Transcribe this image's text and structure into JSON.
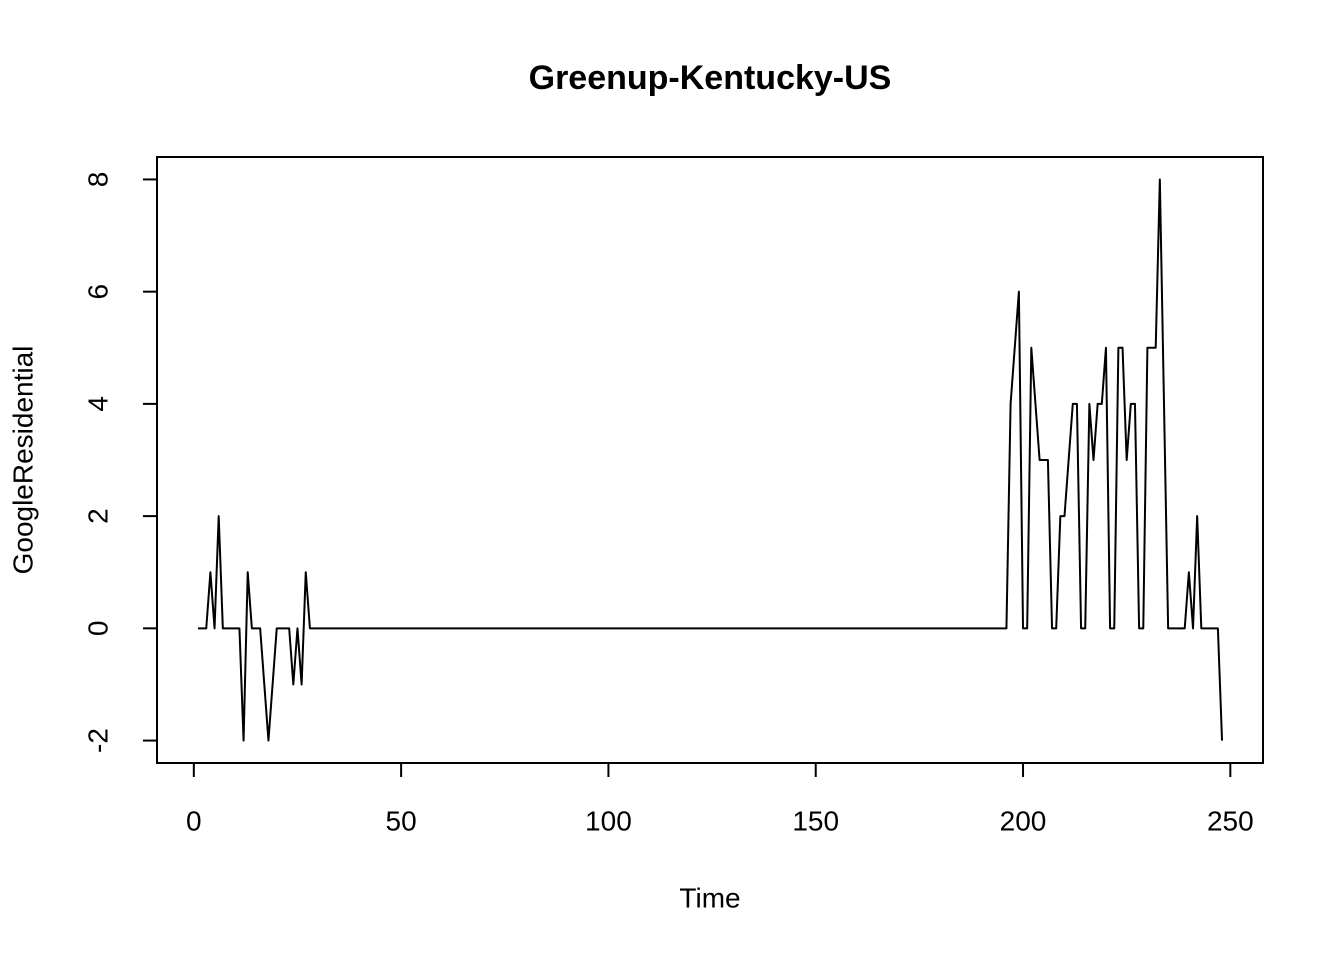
{
  "chart_data": {
    "type": "line",
    "title": "Greenup-Kentucky-US",
    "x_label": "Time",
    "y_label": "GoogleResidential",
    "x": [
      1,
      2,
      3,
      4,
      5,
      6,
      7,
      8,
      9,
      10,
      11,
      12,
      13,
      14,
      15,
      16,
      17,
      18,
      19,
      20,
      21,
      22,
      23,
      24,
      25,
      26,
      27,
      28,
      29,
      30,
      31,
      32,
      33,
      34,
      35,
      36,
      37,
      38,
      39,
      40,
      41,
      42,
      43,
      44,
      45,
      46,
      47,
      48,
      49,
      50,
      51,
      52,
      53,
      54,
      55,
      56,
      57,
      58,
      59,
      60,
      61,
      62,
      63,
      64,
      65,
      66,
      67,
      68,
      69,
      70,
      71,
      72,
      73,
      74,
      75,
      76,
      77,
      78,
      79,
      80,
      81,
      82,
      83,
      84,
      85,
      86,
      87,
      88,
      89,
      90,
      91,
      92,
      93,
      94,
      95,
      96,
      97,
      98,
      99,
      100,
      101,
      102,
      103,
      104,
      105,
      106,
      107,
      108,
      109,
      110,
      111,
      112,
      113,
      114,
      115,
      116,
      117,
      118,
      119,
      120,
      121,
      122,
      123,
      124,
      125,
      126,
      127,
      128,
      129,
      130,
      131,
      132,
      133,
      134,
      135,
      136,
      137,
      138,
      139,
      140,
      141,
      142,
      143,
      144,
      145,
      146,
      147,
      148,
      149,
      150,
      151,
      152,
      153,
      154,
      155,
      156,
      157,
      158,
      159,
      160,
      161,
      162,
      163,
      164,
      165,
      166,
      167,
      168,
      169,
      170,
      171,
      172,
      173,
      174,
      175,
      176,
      177,
      178,
      179,
      180,
      181,
      182,
      183,
      184,
      185,
      186,
      187,
      188,
      189,
      190,
      191,
      192,
      193,
      194,
      195,
      196,
      197,
      198,
      199,
      200,
      201,
      202,
      203,
      204,
      205,
      206,
      207,
      208,
      209,
      210,
      211,
      212,
      213,
      214,
      215,
      216,
      217,
      218,
      219,
      220,
      221,
      222,
      223,
      224,
      225,
      226,
      227,
      228,
      229,
      230,
      231,
      232,
      233,
      234,
      235,
      236,
      237,
      238,
      239,
      240,
      241,
      242,
      243,
      244,
      245,
      246,
      247,
      248
    ],
    "series": [
      {
        "name": "GoogleResidential",
        "color": "#000000",
        "values": [
          0,
          0,
          0,
          1,
          0,
          2,
          0,
          0,
          0,
          0,
          0,
          -2,
          1,
          0,
          0,
          0,
          -1,
          -2,
          -1,
          0,
          0,
          0,
          0,
          -1,
          0,
          -1,
          1,
          0,
          0,
          0,
          0,
          0,
          0,
          0,
          0,
          0,
          0,
          0,
          0,
          0,
          0,
          0,
          0,
          0,
          0,
          0,
          0,
          0,
          0,
          0,
          0,
          0,
          0,
          0,
          0,
          0,
          0,
          0,
          0,
          0,
          0,
          0,
          0,
          0,
          0,
          0,
          0,
          0,
          0,
          0,
          0,
          0,
          0,
          0,
          0,
          0,
          0,
          0,
          0,
          0,
          0,
          0,
          0,
          0,
          0,
          0,
          0,
          0,
          0,
          0,
          0,
          0,
          0,
          0,
          0,
          0,
          0,
          0,
          0,
          0,
          0,
          0,
          0,
          0,
          0,
          0,
          0,
          0,
          0,
          0,
          0,
          0,
          0,
          0,
          0,
          0,
          0,
          0,
          0,
          0,
          0,
          0,
          0,
          0,
          0,
          0,
          0,
          0,
          0,
          0,
          0,
          0,
          0,
          0,
          0,
          0,
          0,
          0,
          0,
          0,
          0,
          0,
          0,
          0,
          0,
          0,
          0,
          0,
          0,
          0,
          0,
          0,
          0,
          0,
          0,
          0,
          0,
          0,
          0,
          0,
          0,
          0,
          0,
          0,
          0,
          0,
          0,
          0,
          0,
          0,
          0,
          0,
          0,
          0,
          0,
          0,
          0,
          0,
          0,
          0,
          0,
          0,
          0,
          0,
          0,
          0,
          0,
          0,
          0,
          0,
          0,
          0,
          0,
          0,
          0,
          0,
          4,
          5,
          6,
          0,
          0,
          5,
          4,
          3,
          3,
          3,
          0,
          0,
          2,
          2,
          3,
          4,
          4,
          0,
          0,
          4,
          3,
          4,
          4,
          5,
          0,
          0,
          5,
          5,
          3,
          4,
          4,
          0,
          0,
          5,
          5,
          5,
          8,
          4,
          0,
          0,
          0,
          0,
          0,
          1,
          0,
          2,
          0,
          0,
          0,
          0,
          0,
          -2
        ]
      }
    ],
    "xlim": [
      -8.88,
      257.88
    ],
    "xticks": [
      0,
      50,
      100,
      150,
      200,
      250
    ],
    "ylim": [
      -2.4,
      8.4
    ],
    "yticks": [
      -2,
      0,
      2,
      4,
      6,
      8
    ],
    "grid": false
  }
}
